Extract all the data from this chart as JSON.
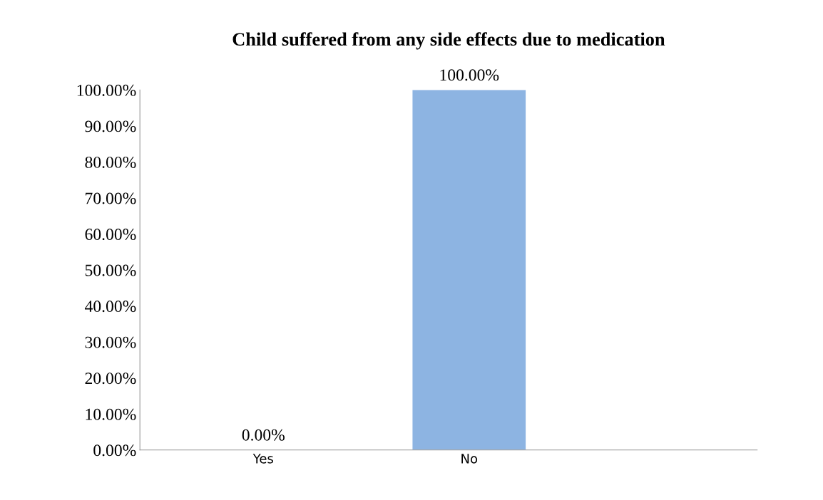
{
  "chart_data": {
    "type": "bar",
    "title": "Child suffered from any side effects due to medication",
    "categories": [
      "Yes",
      "No"
    ],
    "values": [
      0,
      100
    ],
    "colors": [
      "#3a5f8c",
      "#8db4e2"
    ],
    "value_labels": [
      "0.00%",
      "100.00%"
    ],
    "ylim": [
      0,
      100
    ],
    "yticks": [
      {
        "value": 0,
        "label": "0.00%"
      },
      {
        "value": 10,
        "label": "10.00%"
      },
      {
        "value": 20,
        "label": "20.00%"
      },
      {
        "value": 30,
        "label": "30.00%"
      },
      {
        "value": 40,
        "label": "40.00%"
      },
      {
        "value": 50,
        "label": "50.00%"
      },
      {
        "value": 60,
        "label": "60.00%"
      },
      {
        "value": 70,
        "label": "70.00%"
      },
      {
        "value": 80,
        "label": "80.00%"
      },
      {
        "value": 90,
        "label": "90.00%"
      },
      {
        "value": 100,
        "label": "100.00%"
      }
    ],
    "grid": false
  }
}
